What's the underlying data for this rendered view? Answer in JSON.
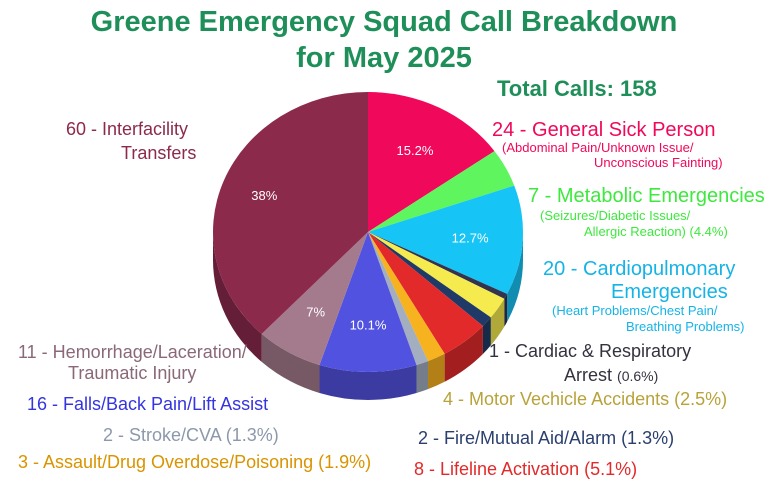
{
  "title_line1": "Greene Emergency Squad Call Breakdown",
  "title_line2": "for May 2025",
  "total_calls": "Total Calls: 158",
  "labels": {
    "general_sick": {
      "main": "24 - General Sick Person",
      "sub1": "(Abdominal Pain/Unknown Issue/",
      "sub2": "Unconscious Fainting)"
    },
    "metabolic": {
      "main": "7 - Metabolic Emergencies",
      "sub1": "(Seizures/Diabetic Issues/",
      "sub2": "Allergic Reaction)  (4.4%)"
    },
    "cardiopulmonary": {
      "main1": "20 - Cardiopulmonary",
      "main2": "Emergencies",
      "sub1": "(Heart Problems/Chest Pain/",
      "sub2": "Breathing Problems)"
    },
    "cardiac_arrest": {
      "main1": "1 - Cardiac & Respiratory",
      "main2": "Arrest",
      "pct": "(0.6%)"
    },
    "motor_vehicle": "4 - Motor Vechicle Accidents (2.5%)",
    "fire": "2 - Fire/Mutual Aid/Alarm (1.3%)",
    "lifeline": "8 - Lifeline Activation (5.1%)",
    "assault": "3 -  Assault/Drug Overdose/Poisoning (1.9%)",
    "stroke": "2 - Stroke/CVA (1.3%)",
    "falls": "16 - Falls/Back Pain/Lift Assist",
    "hemorrhage": {
      "line1": "11 - Hemorrhage/Laceration/",
      "line2": "Traumatic Injury"
    },
    "interfacility": {
      "line1": "60 - Interfacility",
      "line2": "Transfers"
    }
  },
  "chart_data": {
    "type": "pie",
    "title": "Greene Emergency Squad Call Breakdown for May 2025",
    "total": 158,
    "series": [
      {
        "category": "General Sick Person",
        "value": 24,
        "label": "15.2%",
        "color": "#f0085a"
      },
      {
        "category": "Metabolic Emergencies",
        "value": 7,
        "label": "",
        "color": "#5ef55e"
      },
      {
        "category": "Cardiopulmonary Emergencies",
        "value": 20,
        "label": "12.7%",
        "color": "#16c4f5"
      },
      {
        "category": "Cardiac & Respiratory Arrest",
        "value": 1,
        "label": "",
        "color": "#33334d"
      },
      {
        "category": "Motor Vechicle Accidents",
        "value": 4,
        "label": "",
        "color": "#f5eb4f"
      },
      {
        "category": "Fire/Mutual Aid/Alarm",
        "value": 2,
        "label": "",
        "color": "#1f3a66"
      },
      {
        "category": "Lifeline Activation",
        "value": 8,
        "label": "",
        "color": "#e22a2a"
      },
      {
        "category": "Assault/Drug Overdose/Poisoning",
        "value": 3,
        "label": "",
        "color": "#f7b21f"
      },
      {
        "category": "Stroke/CVA",
        "value": 2,
        "label": "",
        "color": "#a3aec0"
      },
      {
        "category": "Falls/Back Pain/Lift Assist",
        "value": 16,
        "label": "10.1%",
        "color": "#5252e0"
      },
      {
        "category": "Hemorrhage/Laceration/Traumatic Injury",
        "value": 11,
        "label": "7%",
        "color": "#a47b8c"
      },
      {
        "category": "Interfacility Transfers",
        "value": 60,
        "label": "38%",
        "color": "#8c2a4c"
      }
    ]
  }
}
